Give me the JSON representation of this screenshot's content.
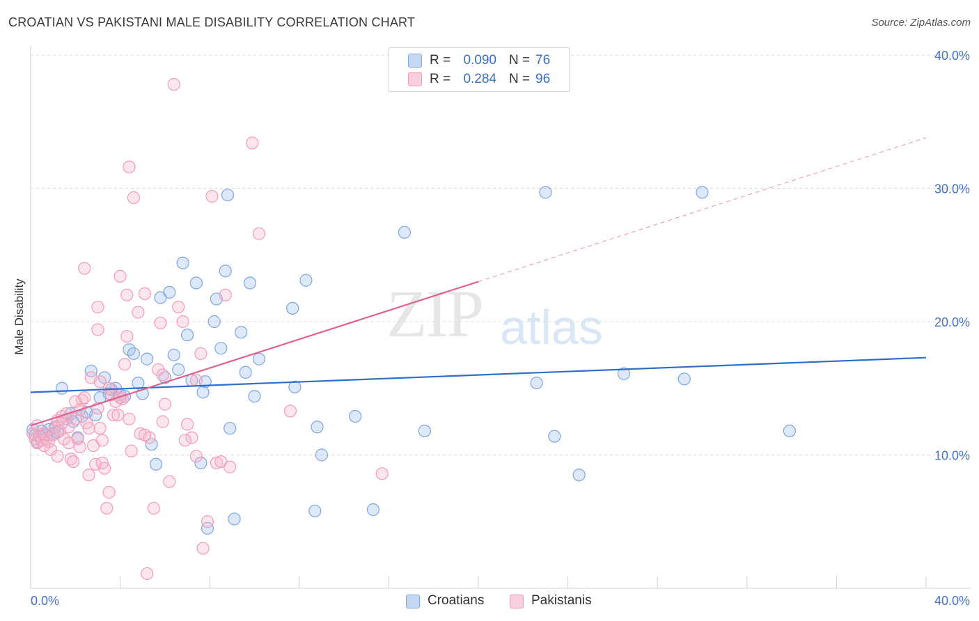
{
  "header": {
    "title": "CROATIAN VS PAKISTANI MALE DISABILITY CORRELATION CHART",
    "source": "Source: ZipAtlas.com"
  },
  "watermark": {
    "zip": "ZIP",
    "atlas": "atlas"
  },
  "legend": {
    "rows": [
      {
        "r_label": "R =",
        "r_value": "0.090",
        "n_label": "N =",
        "n_value": "76",
        "color": "#7ea6e0",
        "fill": "#c5d7f2"
      },
      {
        "r_label": "R =",
        "r_value": "0.284",
        "n_label": "N =",
        "n_value": "96",
        "color": "#f29bb7",
        "fill": "#f9cfdc"
      }
    ]
  },
  "bottom_legend": [
    {
      "label": "Croatians",
      "color": "#7ea6e0",
      "fill": "#c5d7f2"
    },
    {
      "label": "Pakistanis",
      "color": "#f29bb7",
      "fill": "#f9cfdc"
    }
  ],
  "chart_data": {
    "type": "scatter",
    "title": "CROATIAN VS PAKISTANI MALE DISABILITY CORRELATION CHART",
    "xlabel": "",
    "ylabel": "Male Disability",
    "xlim": [
      0,
      40
    ],
    "ylim": [
      0,
      40
    ],
    "x_tick_labels": [
      "0.0%",
      "40.0%"
    ],
    "y_ticks": [
      10,
      20,
      30,
      40
    ],
    "y_tick_labels": [
      "10.0%",
      "20.0%",
      "30.0%",
      "40.0%"
    ],
    "grid": "horizontal dashed",
    "series": [
      {
        "name": "Croatians",
        "stroke": "#7ea6e0",
        "fill": "rgba(158,190,236,0.35)",
        "trend": {
          "x0": 0,
          "y0": 14.7,
          "x1": 40,
          "y1": 17.3,
          "color": "#2e6fcc"
        },
        "points": [
          [
            0.1,
            11.9
          ],
          [
            0.2,
            11.5
          ],
          [
            0.3,
            11.0
          ],
          [
            0.5,
            11.8
          ],
          [
            0.6,
            11.3
          ],
          [
            0.7,
            11.5
          ],
          [
            0.8,
            11.9
          ],
          [
            1.0,
            11.6
          ],
          [
            1.1,
            12.1
          ],
          [
            1.2,
            11.7
          ],
          [
            1.4,
            15.0
          ],
          [
            1.6,
            12.7
          ],
          [
            1.8,
            13.1
          ],
          [
            1.9,
            12.5
          ],
          [
            2.1,
            11.3
          ],
          [
            2.3,
            12.9
          ],
          [
            2.5,
            13.2
          ],
          [
            2.7,
            16.3
          ],
          [
            2.9,
            13.0
          ],
          [
            3.1,
            14.3
          ],
          [
            3.3,
            15.8
          ],
          [
            3.5,
            14.6
          ],
          [
            3.6,
            14.9
          ],
          [
            3.8,
            15.0
          ],
          [
            4.0,
            14.5
          ],
          [
            4.2,
            14.4
          ],
          [
            4.4,
            17.9
          ],
          [
            4.6,
            17.6
          ],
          [
            4.8,
            15.4
          ],
          [
            5.0,
            14.6
          ],
          [
            5.2,
            17.2
          ],
          [
            5.4,
            10.8
          ],
          [
            5.6,
            9.3
          ],
          [
            5.8,
            21.8
          ],
          [
            6.0,
            15.8
          ],
          [
            6.2,
            22.2
          ],
          [
            6.4,
            17.5
          ],
          [
            6.6,
            16.4
          ],
          [
            6.8,
            24.4
          ],
          [
            7.0,
            19.0
          ],
          [
            7.2,
            15.6
          ],
          [
            7.4,
            22.9
          ],
          [
            7.6,
            9.4
          ],
          [
            7.7,
            14.7
          ],
          [
            7.8,
            15.5
          ],
          [
            7.9,
            4.5
          ],
          [
            8.2,
            20.0
          ],
          [
            8.3,
            21.7
          ],
          [
            8.5,
            18.0
          ],
          [
            8.7,
            23.8
          ],
          [
            8.8,
            29.5
          ],
          [
            8.9,
            12.0
          ],
          [
            9.1,
            5.2
          ],
          [
            9.4,
            19.2
          ],
          [
            9.6,
            16.2
          ],
          [
            9.8,
            22.9
          ],
          [
            10.0,
            14.4
          ],
          [
            10.2,
            17.2
          ],
          [
            11.7,
            21.0
          ],
          [
            11.8,
            15.1
          ],
          [
            12.3,
            23.1
          ],
          [
            12.7,
            5.8
          ],
          [
            12.8,
            12.1
          ],
          [
            13.0,
            10.0
          ],
          [
            14.5,
            12.9
          ],
          [
            15.3,
            5.9
          ],
          [
            16.7,
            26.7
          ],
          [
            17.6,
            11.8
          ],
          [
            22.6,
            15.4
          ],
          [
            23.0,
            29.7
          ],
          [
            23.4,
            11.4
          ],
          [
            24.5,
            8.5
          ],
          [
            26.5,
            16.1
          ],
          [
            29.2,
            15.7
          ],
          [
            33.9,
            11.8
          ],
          [
            30.0,
            29.7
          ]
        ]
      },
      {
        "name": "Pakistanis",
        "stroke": "#f29bb7",
        "fill": "rgba(246,184,204,0.35)",
        "trend": {
          "x0": 0,
          "y0": 12.2,
          "x1": 20,
          "y1": 23.0,
          "x_ext": 40,
          "y_ext": 33.8,
          "color": "#e0608e"
        },
        "points": [
          [
            0.1,
            11.6
          ],
          [
            0.2,
            11.2
          ],
          [
            0.3,
            10.9
          ],
          [
            0.4,
            11.4
          ],
          [
            0.5,
            11.1
          ],
          [
            0.6,
            11.6
          ],
          [
            0.7,
            11.2
          ],
          [
            0.8,
            11.0
          ],
          [
            0.9,
            10.4
          ],
          [
            1.0,
            11.5
          ],
          [
            1.1,
            12.0
          ],
          [
            1.2,
            12.6
          ],
          [
            1.3,
            11.8
          ],
          [
            1.4,
            12.9
          ],
          [
            1.5,
            11.2
          ],
          [
            1.6,
            13.1
          ],
          [
            1.7,
            10.9
          ],
          [
            1.8,
            9.7
          ],
          [
            1.9,
            9.5
          ],
          [
            2.0,
            12.7
          ],
          [
            2.1,
            11.2
          ],
          [
            2.2,
            10.6
          ],
          [
            2.3,
            14.1
          ],
          [
            2.4,
            14.3
          ],
          [
            2.5,
            12.4
          ],
          [
            2.6,
            12.0
          ],
          [
            2.7,
            15.8
          ],
          [
            2.8,
            10.7
          ],
          [
            2.9,
            9.3
          ],
          [
            3.0,
            13.5
          ],
          [
            3.1,
            12.0
          ],
          [
            3.2,
            11.1
          ],
          [
            3.3,
            9.0
          ],
          [
            3.4,
            6.0
          ],
          [
            3.5,
            15.0
          ],
          [
            3.6,
            14.5
          ],
          [
            3.7,
            13.0
          ],
          [
            3.8,
            14.0
          ],
          [
            3.9,
            13.0
          ],
          [
            4.0,
            23.4
          ],
          [
            4.1,
            14.2
          ],
          [
            4.2,
            16.8
          ],
          [
            4.3,
            18.9
          ],
          [
            4.4,
            12.7
          ],
          [
            4.5,
            10.3
          ],
          [
            4.6,
            29.3
          ],
          [
            4.8,
            20.7
          ],
          [
            4.9,
            11.6
          ],
          [
            5.1,
            22.1
          ],
          [
            5.3,
            11.3
          ],
          [
            5.5,
            6.0
          ],
          [
            5.7,
            16.4
          ],
          [
            5.8,
            19.9
          ],
          [
            5.9,
            12.5
          ],
          [
            6.0,
            13.8
          ],
          [
            6.2,
            8.0
          ],
          [
            6.4,
            37.8
          ],
          [
            6.6,
            21.1
          ],
          [
            6.8,
            20.0
          ],
          [
            7.0,
            12.3
          ],
          [
            7.2,
            11.3
          ],
          [
            7.4,
            15.6
          ],
          [
            7.6,
            17.6
          ],
          [
            7.7,
            3.0
          ],
          [
            7.9,
            5.0
          ],
          [
            8.1,
            29.4
          ],
          [
            8.3,
            9.4
          ],
          [
            8.5,
            9.5
          ],
          [
            8.7,
            22.0
          ],
          [
            9.9,
            33.4
          ],
          [
            10.2,
            26.6
          ],
          [
            11.6,
            13.3
          ],
          [
            15.7,
            8.6
          ],
          [
            4.4,
            31.6
          ],
          [
            2.4,
            24.0
          ],
          [
            3.0,
            21.1
          ],
          [
            3.0,
            19.4
          ],
          [
            4.3,
            22.0
          ],
          [
            5.2,
            1.1
          ],
          [
            3.2,
            9.4
          ],
          [
            3.5,
            7.2
          ],
          [
            1.7,
            12.1
          ],
          [
            2.0,
            14.0
          ],
          [
            2.6,
            8.5
          ],
          [
            0.3,
            12.2
          ],
          [
            0.6,
            10.7
          ],
          [
            1.2,
            9.9
          ],
          [
            1.4,
            12.4
          ],
          [
            2.2,
            13.4
          ],
          [
            3.1,
            15.5
          ],
          [
            4.0,
            14.3
          ],
          [
            5.1,
            11.5
          ],
          [
            5.9,
            16.0
          ],
          [
            6.9,
            11.1
          ],
          [
            7.4,
            9.9
          ],
          [
            8.9,
            9.1
          ]
        ]
      }
    ]
  }
}
